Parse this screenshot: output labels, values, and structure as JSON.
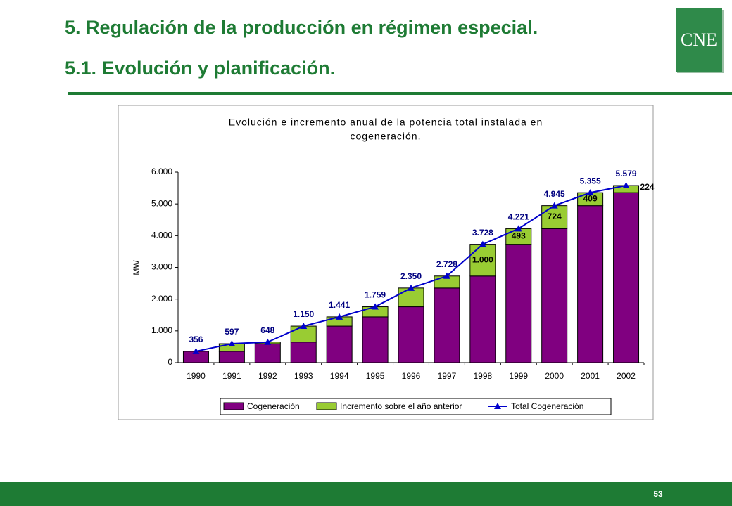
{
  "header": {
    "title": "5. Regulación de la producción en régimen especial.",
    "subtitle": "5.1. Evolución y planificación."
  },
  "logo": "CNE",
  "page_number": 53,
  "chart_data": {
    "type": "bar",
    "stacked": true,
    "title": "Evolución e incremento anual de la potencia total instalada en",
    "title_line2": "cogeneración.",
    "y_label": "MW",
    "categories": [
      "1990",
      "1991",
      "1992",
      "1993",
      "1994",
      "1995",
      "1996",
      "1997",
      "1998",
      "1999",
      "2000",
      "2001",
      "2002"
    ],
    "series": [
      {
        "name": "Cogeneración",
        "type": "bar",
        "color": "#800080",
        "values": [
          356,
          356,
          597,
          648,
          1150,
          1441,
          1759,
          2350,
          2728,
          3728,
          4221,
          4945,
          5355
        ]
      },
      {
        "name": "Incremento sobre el año anterior",
        "type": "bar",
        "color": "#99cc33",
        "values": [
          null,
          241,
          51,
          502,
          291,
          318,
          591,
          378,
          1000,
          493,
          724,
          409,
          224
        ],
        "value_labels": [
          null,
          null,
          null,
          null,
          null,
          null,
          null,
          null,
          "1.000",
          "493",
          "724",
          "409",
          "224"
        ]
      },
      {
        "name": "Total Cogeneración",
        "type": "line",
        "color": "#0000cc",
        "values": [
          356,
          597,
          648,
          1150,
          1441,
          1759,
          2350,
          2728,
          3728,
          4221,
          4945,
          5355,
          5579
        ],
        "value_labels": [
          "356",
          "597",
          "648",
          "1.150",
          "1.441",
          "1.759",
          "2.350",
          "2.728",
          "3.728",
          "4.221",
          "4.945",
          "5.355",
          "5.579"
        ]
      }
    ],
    "ylim": [
      0,
      6000
    ],
    "yticks": [
      0,
      {
        "value": 1000,
        "label": "1.000"
      },
      {
        "value": 2000,
        "label": "2.000"
      },
      {
        "value": 3000,
        "label": "3.000"
      },
      {
        "value": 4000,
        "label": "4.000"
      },
      {
        "value": 5000,
        "label": "5.000"
      },
      {
        "value": 6000,
        "label": "6.000"
      }
    ],
    "grid": false,
    "legend": "bottom"
  }
}
